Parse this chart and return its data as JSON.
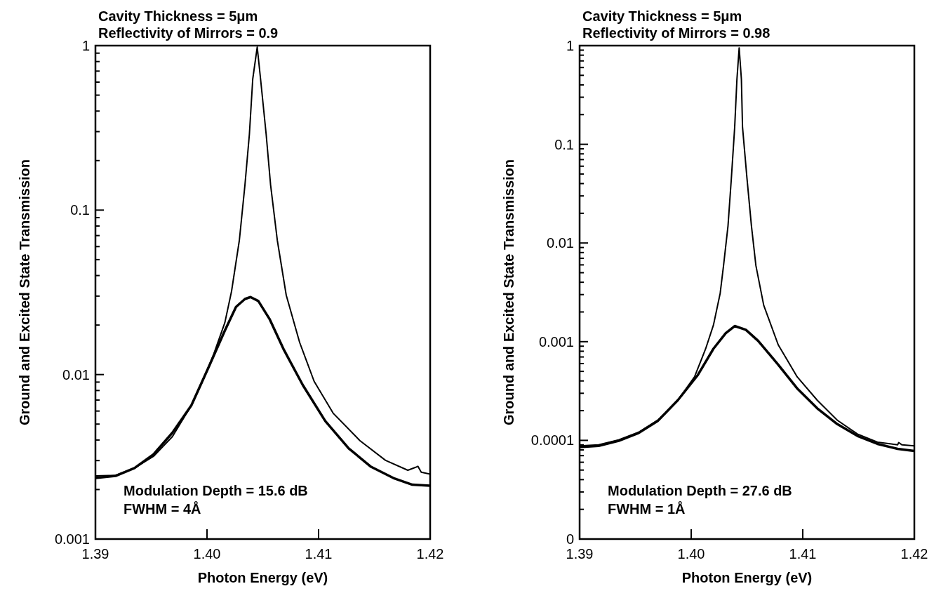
{
  "chart_data": [
    {
      "type": "line",
      "title": "Cavity Thickness = 5μm",
      "subtitle": "Reflectivity of Mirrors = 0.9",
      "xlabel": "Photon Energy (eV)",
      "ylabel": "Ground and Excited State Transmission",
      "log": "y",
      "xlim": [
        1.39,
        1.42
      ],
      "xticks": [
        1.39,
        {
          "value": 1.4,
          "label": "1.40"
        },
        1.41,
        1.42
      ],
      "ylim": [
        0.001,
        1
      ],
      "yticks": [
        0.001,
        {
          "value": 0.002,
          "label": null
        },
        {
          "value": 0.003,
          "label": null
        },
        {
          "value": 0.004,
          "label": null
        },
        {
          "value": 0.005,
          "label": null
        },
        {
          "value": 0.006,
          "label": null
        },
        {
          "value": 0.007,
          "label": null
        },
        {
          "value": 0.008,
          "label": null
        },
        {
          "value": 0.009,
          "label": null
        },
        0.01,
        {
          "value": 0.02,
          "label": null
        },
        {
          "value": 0.03,
          "label": null
        },
        {
          "value": 0.04,
          "label": null
        },
        {
          "value": 0.05,
          "label": null
        },
        {
          "value": 0.06,
          "label": null
        },
        {
          "value": 0.07,
          "label": null
        },
        {
          "value": 0.08,
          "label": null
        },
        {
          "value": 0.09,
          "label": null
        },
        0.1,
        {
          "value": 0.2,
          "label": null
        },
        {
          "value": 0.3,
          "label": null
        },
        {
          "value": 0.4,
          "label": null
        },
        {
          "value": 0.5,
          "label": null
        },
        {
          "value": 0.6,
          "label": null
        },
        {
          "value": 0.7,
          "label": null
        },
        {
          "value": 0.8,
          "label": null
        },
        {
          "value": 0.9,
          "label": null
        },
        1
      ],
      "series": [
        {
          "color": "#000000",
          "x": [
            1.39,
            1.3918,
            1.3935,
            1.3952,
            1.3969,
            1.3986,
            1.3996,
            1.4006,
            1.4016,
            1.4022,
            1.4029,
            1.4034,
            1.4038,
            1.4041,
            1.4045,
            1.4048,
            1.4053,
            1.4057,
            1.4063,
            1.4071,
            1.4083,
            1.4096,
            1.4113,
            1.4137,
            1.416,
            1.418,
            1.4187,
            1.4189,
            1.4192,
            1.42
          ],
          "values": [
            0.00242,
            0.00244,
            0.0027,
            0.00318,
            0.0042,
            0.0065,
            0.0091,
            0.0133,
            0.0207,
            0.0321,
            0.0656,
            0.142,
            0.29,
            0.627,
            0.98,
            0.627,
            0.29,
            0.142,
            0.0656,
            0.0304,
            0.0157,
            0.0091,
            0.00583,
            0.00397,
            0.00301,
            0.00262,
            0.00273,
            0.00277,
            0.00255,
            0.00248
          ]
        },
        {
          "color": "#000000",
          "x": [
            1.39,
            1.3918,
            1.3935,
            1.3952,
            1.3969,
            1.3986,
            1.4002,
            1.4016,
            1.4026,
            1.4034,
            1.4039,
            1.4046,
            1.4056,
            1.4069,
            1.4086,
            1.4106,
            1.4127,
            1.4147,
            1.4167,
            1.4184,
            1.42
          ],
          "values": [
            0.00235,
            0.00242,
            0.0027,
            0.00327,
            0.00443,
            0.0065,
            0.0113,
            0.0185,
            0.0258,
            0.0288,
            0.0296,
            0.028,
            0.0218,
            0.0141,
            0.0086,
            0.00522,
            0.00356,
            0.00275,
            0.00235,
            0.00214,
            0.00211
          ]
        }
      ],
      "annotations": [
        "Modulation Depth = 15.6 dB",
        "FWHM = 4Å"
      ]
    },
    {
      "type": "line",
      "title": "Cavity Thickness = 5μm",
      "subtitle": "Reflectivity of Mirrors = 0.98",
      "xlabel": "Photon Energy (eV)",
      "ylabel": "Ground and Excited State Transmission",
      "log": "y",
      "xlim": [
        1.39,
        1.42
      ],
      "xticks": [
        1.39,
        {
          "value": 1.4,
          "label": "1.40"
        },
        1.41,
        1.42
      ],
      "ylim": [
        1e-05,
        1
      ],
      "yticks": [
        {
          "value": 1e-05,
          "label": "0"
        },
        {
          "value": 2e-05,
          "label": null
        },
        {
          "value": 3e-05,
          "label": null
        },
        {
          "value": 4e-05,
          "label": null
        },
        {
          "value": 5e-05,
          "label": null
        },
        {
          "value": 6e-05,
          "label": null
        },
        {
          "value": 7e-05,
          "label": null
        },
        {
          "value": 8e-05,
          "label": null
        },
        {
          "value": 9e-05,
          "label": null
        },
        0.0001,
        {
          "value": 0.0002,
          "label": null
        },
        {
          "value": 0.0003,
          "label": null
        },
        {
          "value": 0.0004,
          "label": null
        },
        {
          "value": 0.0005,
          "label": null
        },
        {
          "value": 0.0006,
          "label": null
        },
        {
          "value": 0.0007,
          "label": null
        },
        {
          "value": 0.0008,
          "label": null
        },
        {
          "value": 0.0009,
          "label": null
        },
        0.001,
        {
          "value": 0.002,
          "label": null
        },
        {
          "value": 0.003,
          "label": null
        },
        {
          "value": 0.004,
          "label": null
        },
        {
          "value": 0.005,
          "label": null
        },
        {
          "value": 0.006,
          "label": null
        },
        {
          "value": 0.007,
          "label": null
        },
        {
          "value": 0.008,
          "label": null
        },
        {
          "value": 0.009,
          "label": null
        },
        0.01,
        {
          "value": 0.02,
          "label": null
        },
        {
          "value": 0.03,
          "label": null
        },
        {
          "value": 0.04,
          "label": null
        },
        {
          "value": 0.05,
          "label": null
        },
        {
          "value": 0.06,
          "label": null
        },
        {
          "value": 0.07,
          "label": null
        },
        {
          "value": 0.08,
          "label": null
        },
        {
          "value": 0.09,
          "label": null
        },
        0.1,
        {
          "value": 0.2,
          "label": null
        },
        {
          "value": 0.3,
          "label": null
        },
        {
          "value": 0.4,
          "label": null
        },
        {
          "value": 0.5,
          "label": null
        },
        {
          "value": 0.6,
          "label": null
        },
        {
          "value": 0.7,
          "label": null
        },
        {
          "value": 0.8,
          "label": null
        },
        {
          "value": 0.9,
          "label": null
        },
        1
      ],
      "series": [
        {
          "color": "#000000",
          "x": [
            1.39,
            1.3917,
            1.3935,
            1.3953,
            1.397,
            1.3988,
            1.4003,
            1.4013,
            1.402,
            1.4026,
            1.4029,
            1.4033,
            1.4036,
            1.4039,
            1.4041,
            1.4043,
            1.4045,
            1.4046,
            1.405,
            1.4054,
            1.4058,
            1.4065,
            1.4078,
            1.4095,
            1.4113,
            1.4131,
            1.4149,
            1.4167,
            1.4185,
            1.4186,
            1.4189,
            1.42
          ],
          "values": [
            8.8e-05,
            9e-05,
            0.000101,
            0.000121,
            0.00016,
            0.000255,
            0.00044,
            0.00085,
            0.00148,
            0.0031,
            0.0059,
            0.0149,
            0.0452,
            0.15,
            0.456,
            0.95,
            0.456,
            0.15,
            0.0452,
            0.0149,
            0.0059,
            0.00234,
            0.00093,
            0.00044,
            0.000255,
            0.00016,
            0.000116,
            9.6e-05,
            9e-05,
            9.5e-05,
            9e-05,
            8.8e-05
          ]
        },
        {
          "color": "#000000",
          "x": [
            1.39,
            1.3917,
            1.3935,
            1.3953,
            1.397,
            1.3988,
            1.4006,
            1.402,
            1.4031,
            1.4039,
            1.4049,
            1.406,
            1.4078,
            1.4095,
            1.4113,
            1.4131,
            1.4149,
            1.4167,
            1.4185,
            1.42
          ],
          "values": [
            8.55e-05,
            8.8e-05,
            9.9e-05,
            0.000119,
            0.000157,
            0.000255,
            0.00046,
            0.00085,
            0.00122,
            0.00144,
            0.00132,
            0.00102,
            0.000585,
            0.000336,
            0.000211,
            0.000146,
            0.000111,
            9.2e-05,
            8.2e-05,
            7.8e-05
          ]
        }
      ],
      "annotations": [
        "Modulation Depth = 27.6 dB",
        "FWHM = 1Å"
      ]
    }
  ]
}
